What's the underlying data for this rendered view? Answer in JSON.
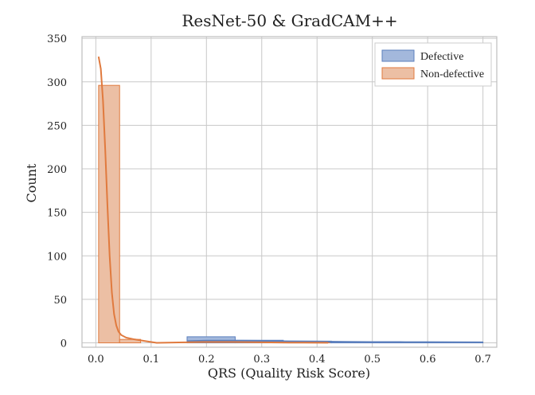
{
  "chart_data": {
    "type": "bar",
    "title": "ResNet-50 & GradCAM++",
    "xlabel": "QRS (Quality Risk Score)",
    "ylabel": "Count",
    "xlim": [
      -0.025,
      0.725
    ],
    "ylim": [
      -5,
      352
    ],
    "xticks": [
      0.0,
      0.1,
      0.2,
      0.3,
      0.4,
      0.5,
      0.6,
      0.7
    ],
    "xtick_labels": [
      "0.0",
      "0.1",
      "0.2",
      "0.3",
      "0.4",
      "0.5",
      "0.6",
      "0.7"
    ],
    "yticks": [
      0,
      50,
      100,
      150,
      200,
      250,
      300,
      350
    ],
    "ytick_labels": [
      "0",
      "50",
      "100",
      "150",
      "200",
      "250",
      "300",
      "350"
    ],
    "grid": true,
    "legend_position": "top-right",
    "series": [
      {
        "name": "Defective",
        "color": "#5b7fbd",
        "fill": "#a3b8dc",
        "bins": [
          {
            "x0": 0.165,
            "x1": 0.252,
            "count": 7
          },
          {
            "x0": 0.252,
            "x1": 0.339,
            "count": 3
          },
          {
            "x0": 0.339,
            "x1": 0.426,
            "count": 2
          },
          {
            "x0": 0.426,
            "x1": 0.513,
            "count": 1
          },
          {
            "x0": 0.513,
            "x1": 0.6,
            "count": 1
          },
          {
            "x0": 0.6,
            "x1": 0.7,
            "count": 1
          }
        ],
        "kde": [
          [
            0.165,
            2
          ],
          [
            0.2,
            2.5
          ],
          [
            0.25,
            2.6
          ],
          [
            0.3,
            2.3
          ],
          [
            0.35,
            1.8
          ],
          [
            0.4,
            1.5
          ],
          [
            0.45,
            1.2
          ],
          [
            0.5,
            1.0
          ],
          [
            0.55,
            0.9
          ],
          [
            0.6,
            0.8
          ],
          [
            0.65,
            0.7
          ],
          [
            0.7,
            0.6
          ]
        ]
      },
      {
        "name": "Non-defective",
        "color": "#e07a3e",
        "fill": "#ecbfa4",
        "bins": [
          {
            "x0": 0.005,
            "x1": 0.043,
            "count": 296
          },
          {
            "x0": 0.043,
            "x1": 0.081,
            "count": 4
          },
          {
            "x0": 0.081,
            "x1": 0.119,
            "count": 0
          },
          {
            "x0": 0.119,
            "x1": 0.157,
            "count": 0
          },
          {
            "x0": 0.157,
            "x1": 0.195,
            "count": 0
          },
          {
            "x0": 0.195,
            "x1": 0.233,
            "count": 0
          },
          {
            "x0": 0.233,
            "x1": 0.271,
            "count": 0
          },
          {
            "x0": 0.271,
            "x1": 0.309,
            "count": 0
          },
          {
            "x0": 0.309,
            "x1": 0.347,
            "count": 0
          },
          {
            "x0": 0.347,
            "x1": 0.385,
            "count": 0
          },
          {
            "x0": 0.385,
            "x1": 0.423,
            "count": 1
          }
        ],
        "kde": [
          [
            0.005,
            329
          ],
          [
            0.009,
            315
          ],
          [
            0.013,
            278
          ],
          [
            0.017,
            222
          ],
          [
            0.021,
            158
          ],
          [
            0.025,
            100
          ],
          [
            0.029,
            58
          ],
          [
            0.033,
            33
          ],
          [
            0.037,
            20
          ],
          [
            0.041,
            13
          ],
          [
            0.046,
            9
          ],
          [
            0.055,
            6
          ],
          [
            0.07,
            4
          ],
          [
            0.09,
            2
          ],
          [
            0.11,
            0
          ],
          [
            0.15,
            0.5
          ],
          [
            0.2,
            1
          ],
          [
            0.25,
            1
          ],
          [
            0.3,
            0.6
          ],
          [
            0.35,
            0.3
          ],
          [
            0.42,
            0.2
          ]
        ]
      }
    ]
  }
}
